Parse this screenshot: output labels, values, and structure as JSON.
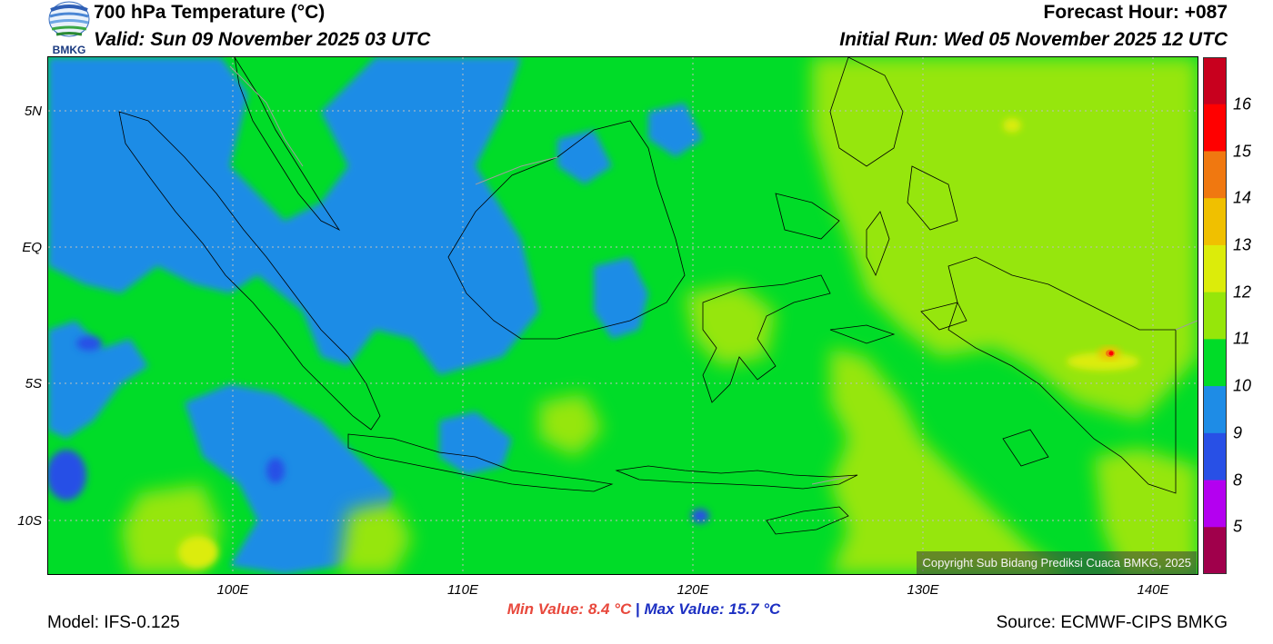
{
  "header": {
    "title": "700 hPa Temperature (°C)",
    "valid": "Valid: Sun 09 November 2025 03 UTC",
    "forecast_hour": "Forecast Hour: +087",
    "initial_run": "Initial Run: Wed 05 November 2025 12 UTC",
    "logo_text": "BMKG"
  },
  "axes": {
    "lat_labels": [
      "5N",
      "EQ",
      "5S",
      "10S"
    ],
    "lon_labels": [
      "100E",
      "110E",
      "120E",
      "130E",
      "140E"
    ]
  },
  "colorbar": {
    "labels": [
      "16",
      "15",
      "14",
      "13",
      "12",
      "11",
      "10",
      "9",
      "8",
      "5"
    ],
    "colors": [
      "#c8001e",
      "#ff0000",
      "#f07810",
      "#f0c000",
      "#dcec0a",
      "#96e60a",
      "#00dc28",
      "#1e8ce6",
      "#2850e6",
      "#b400f0",
      "#a0004b"
    ]
  },
  "stats": {
    "min": "Min Value: 8.4 °C",
    "separator": "|",
    "max": "Max Value: 15.7 °C"
  },
  "footer": {
    "model": "Model: IFS-0.125",
    "source": "Source: ECMWF-CIPS BMKG",
    "copyright": "Copyright Sub Bidang Prediksi Cuaca BMKG, 2025"
  }
}
